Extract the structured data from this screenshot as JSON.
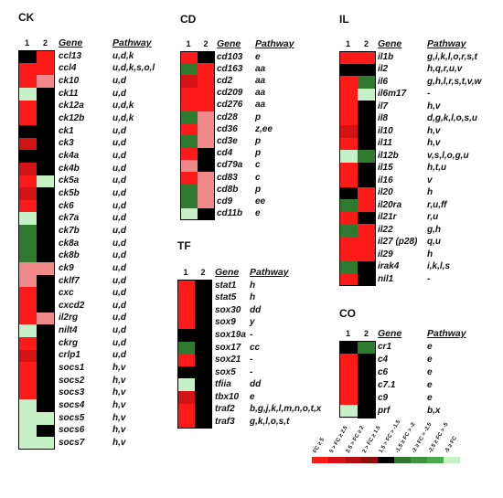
{
  "colors": {
    "up_strong": "#ff1a1a",
    "up_mid": "#d41414",
    "up_weak": "#8e0e0e",
    "neutral": "#000000",
    "down_weak": "#2f7a2f",
    "down_mid": "#4ea84e",
    "down_strong": "#c6f0c6",
    "pale_red": "#f08a8a"
  },
  "legend": {
    "labels": [
      "FC ≥ 5",
      "5 > FC ≥ 2.5",
      "2.5 > FC ≥ 2",
      "2 > FC ≥ 1.5",
      "1.5 > FC > -1.5",
      "-1.5 ≥ FC > -2",
      "-2 ≥ FC > -2.5",
      "-2.5 ≥ FC > -5",
      "-5 ≥ FC"
    ],
    "colors": [
      "#ff1a1a",
      "#d41414",
      "#b01010",
      "#8e0e0e",
      "#000000",
      "#2f7a2f",
      "#3e933e",
      "#4ea84e",
      "#c6f0c6"
    ]
  },
  "panels": [
    {
      "id": "ck",
      "title": "CK",
      "col1": "1",
      "col2": "2",
      "gene_header": "Gene",
      "pathway_header": "Pathway",
      "rows": [
        {
          "gene": "ccl13",
          "pathway": "u,d,k",
          "c1": "#000000",
          "c2": "#ff1a1a"
        },
        {
          "gene": "ccl4",
          "pathway": "u,d,k,s,o,l",
          "c1": "#ff1a1a",
          "c2": "#ff1a1a"
        },
        {
          "gene": "ck10",
          "pathway": "u,d",
          "c1": "#ff1a1a",
          "c2": "#f08a8a"
        },
        {
          "gene": "ck11",
          "pathway": "u,d",
          "c1": "#c6f0c6",
          "c2": "#000000"
        },
        {
          "gene": "ck12a",
          "pathway": "u,d,k",
          "c1": "#ff1a1a",
          "c2": "#000000"
        },
        {
          "gene": "ck12b",
          "pathway": "u,d,k",
          "c1": "#ff1a1a",
          "c2": "#000000"
        },
        {
          "gene": "ck1",
          "pathway": "u,d",
          "c1": "#000000",
          "c2": "#000000"
        },
        {
          "gene": "ck3",
          "pathway": "u,d",
          "c1": "#d41414",
          "c2": "#000000"
        },
        {
          "gene": "ck4a",
          "pathway": "u,d",
          "c1": "#000000",
          "c2": "#000000"
        },
        {
          "gene": "ck4b",
          "pathway": "u,d",
          "c1": "#d41414",
          "c2": "#000000"
        },
        {
          "gene": "ck5a",
          "pathway": "u,d",
          "c1": "#ff1a1a",
          "c2": "#c6f0c6"
        },
        {
          "gene": "ck5b",
          "pathway": "u,d",
          "c1": "#d41414",
          "c2": "#000000"
        },
        {
          "gene": "ck6",
          "pathway": "u,d",
          "c1": "#ff1a1a",
          "c2": "#000000"
        },
        {
          "gene": "ck7a",
          "pathway": "u,d",
          "c1": "#c6f0c6",
          "c2": "#000000"
        },
        {
          "gene": "ck7b",
          "pathway": "u,d",
          "c1": "#2f7a2f",
          "c2": "#000000"
        },
        {
          "gene": "ck8a",
          "pathway": "u,d",
          "c1": "#2f7a2f",
          "c2": "#000000"
        },
        {
          "gene": "ck8b",
          "pathway": "u,d",
          "c1": "#2f7a2f",
          "c2": "#000000"
        },
        {
          "gene": "ck9",
          "pathway": "u,d",
          "c1": "#f08a8a",
          "c2": "#f08a8a"
        },
        {
          "gene": "cklf7",
          "pathway": "u,d",
          "c1": "#f08a8a",
          "c2": "#000000"
        },
        {
          "gene": "cxc",
          "pathway": "u,d",
          "c1": "#ff1a1a",
          "c2": "#000000"
        },
        {
          "gene": "cxcd2",
          "pathway": "u,d",
          "c1": "#ff1a1a",
          "c2": "#000000"
        },
        {
          "gene": "il2rg",
          "pathway": "u,d",
          "c1": "#ff1a1a",
          "c2": "#f08a8a"
        },
        {
          "gene": "nilt4",
          "pathway": "u,d",
          "c1": "#c6f0c6",
          "c2": "#000000"
        },
        {
          "gene": "ckrg",
          "pathway": "u,d",
          "c1": "#ff1a1a",
          "c2": "#000000"
        },
        {
          "gene": "crlp1",
          "pathway": "u,d",
          "c1": "#d41414",
          "c2": "#000000"
        },
        {
          "gene": "socs1",
          "pathway": "h,v",
          "c1": "#ff1a1a",
          "c2": "#000000"
        },
        {
          "gene": "socs2",
          "pathway": "h,v",
          "c1": "#ff1a1a",
          "c2": "#000000"
        },
        {
          "gene": "socs3",
          "pathway": "h,v",
          "c1": "#ff1a1a",
          "c2": "#000000"
        },
        {
          "gene": "socs4",
          "pathway": "h,v",
          "c1": "#c6f0c6",
          "c2": "#000000"
        },
        {
          "gene": "socs5",
          "pathway": "h,v",
          "c1": "#c6f0c6",
          "c2": "#c6f0c6"
        },
        {
          "gene": "socs6",
          "pathway": "h,v",
          "c1": "#c6f0c6",
          "c2": "#000000"
        },
        {
          "gene": "socs7",
          "pathway": "h,v",
          "c1": "#c6f0c6",
          "c2": "#c6f0c6"
        }
      ]
    },
    {
      "id": "cd",
      "title": "CD",
      "col1": "1",
      "col2": "2",
      "gene_header": "Gene",
      "pathway_header": "Pathway",
      "rows": [
        {
          "gene": "cd103",
          "pathway": "e",
          "c1": "#ff1a1a",
          "c2": "#000000"
        },
        {
          "gene": "cd163",
          "pathway": "aa",
          "c1": "#2f7a2f",
          "c2": "#ff1a1a"
        },
        {
          "gene": "cd2",
          "pathway": "aa",
          "c1": "#d41414",
          "c2": "#ff1a1a"
        },
        {
          "gene": "cd209",
          "pathway": "aa",
          "c1": "#ff1a1a",
          "c2": "#ff1a1a"
        },
        {
          "gene": "cd276",
          "pathway": "aa",
          "c1": "#ff1a1a",
          "c2": "#ff1a1a"
        },
        {
          "gene": "cd28",
          "pathway": "p",
          "c1": "#2f7a2f",
          "c2": "#f08a8a"
        },
        {
          "gene": "cd36",
          "pathway": "z,ee",
          "c1": "#ff1a1a",
          "c2": "#f08a8a"
        },
        {
          "gene": "cd3e",
          "pathway": "p",
          "c1": "#2f7a2f",
          "c2": "#f08a8a"
        },
        {
          "gene": "cd4",
          "pathway": "p",
          "c1": "#ff1a1a",
          "c2": "#000000"
        },
        {
          "gene": "cd79a",
          "pathway": "c",
          "c1": "#f08a8a",
          "c2": "#000000"
        },
        {
          "gene": "cd83",
          "pathway": "c",
          "c1": "#ff1a1a",
          "c2": "#f08a8a"
        },
        {
          "gene": "cd8b",
          "pathway": "p",
          "c1": "#2f7a2f",
          "c2": "#f08a8a"
        },
        {
          "gene": "cd9",
          "pathway": "ee",
          "c1": "#2f7a2f",
          "c2": "#f08a8a"
        },
        {
          "gene": "cd11b",
          "pathway": "e",
          "c1": "#c6f0c6",
          "c2": "#000000"
        }
      ]
    },
    {
      "id": "il",
      "title": "IL",
      "col1": "1",
      "col2": "2",
      "gene_header": "Gene",
      "pathway_header": "Pathway",
      "rows": [
        {
          "gene": "il1b",
          "pathway": "g,i,k,l,o,r,s,t",
          "c1": "#ff1a1a",
          "c2": "#ff1a1a"
        },
        {
          "gene": "il2",
          "pathway": "h,q,r,u,v",
          "c1": "#000000",
          "c2": "#000000"
        },
        {
          "gene": "il6",
          "pathway": "g,h,l,r,s,t,v,w",
          "c1": "#ff1a1a",
          "c2": "#2f7a2f"
        },
        {
          "gene": "il6m17",
          "pathway": "-",
          "c1": "#ff1a1a",
          "c2": "#c6f0c6"
        },
        {
          "gene": "il7",
          "pathway": "h,v",
          "c1": "#ff1a1a",
          "c2": "#000000"
        },
        {
          "gene": "il8",
          "pathway": "d,g,k,l,o,s,u",
          "c1": "#ff1a1a",
          "c2": "#000000"
        },
        {
          "gene": "il10",
          "pathway": "h,v",
          "c1": "#d41414",
          "c2": "#000000"
        },
        {
          "gene": "il11",
          "pathway": "h,v",
          "c1": "#ff1a1a",
          "c2": "#000000"
        },
        {
          "gene": "il12b",
          "pathway": "v,s,l,o,g,u",
          "c1": "#c6f0c6",
          "c2": "#2f7a2f"
        },
        {
          "gene": "il15",
          "pathway": "h,t,u",
          "c1": "#ff1a1a",
          "c2": "#000000"
        },
        {
          "gene": "il16",
          "pathway": "v",
          "c1": "#ff1a1a",
          "c2": "#000000"
        },
        {
          "gene": "il20",
          "pathway": "h",
          "c1": "#000000",
          "c2": "#ff1a1a"
        },
        {
          "gene": "il20ra",
          "pathway": "r,u,ff",
          "c1": "#2f7a2f",
          "c2": "#ff1a1a"
        },
        {
          "gene": "il21r",
          "pathway": "r,u",
          "c1": "#ff1a1a",
          "c2": "#000000"
        },
        {
          "gene": "il22",
          "pathway": "g,h",
          "c1": "#2f7a2f",
          "c2": "#ff1a1a"
        },
        {
          "gene": "il27 (p28)",
          "pathway": "q,u",
          "c1": "#ff1a1a",
          "c2": "#ff1a1a"
        },
        {
          "gene": "il29",
          "pathway": "h",
          "c1": "#ff1a1a",
          "c2": "#ff1a1a"
        },
        {
          "gene": "irak4",
          "pathway": "i,k,l,s",
          "c1": "#2f7a2f",
          "c2": "#000000"
        },
        {
          "gene": "nil1",
          "pathway": "-",
          "c1": "#ff1a1a",
          "c2": "#000000"
        }
      ]
    },
    {
      "id": "tf",
      "title": "TF",
      "col1": "1",
      "col2": "2",
      "gene_header": "Gene",
      "pathway_header": "Pathway",
      "rows": [
        {
          "gene": "stat1",
          "pathway": "h",
          "c1": "#ff1a1a",
          "c2": "#000000"
        },
        {
          "gene": "stat5",
          "pathway": "h",
          "c1": "#ff1a1a",
          "c2": "#000000"
        },
        {
          "gene": "sox30",
          "pathway": "dd",
          "c1": "#ff1a1a",
          "c2": "#000000"
        },
        {
          "gene": "sox9",
          "pathway": "y",
          "c1": "#ff1a1a",
          "c2": "#000000"
        },
        {
          "gene": "sox19a",
          "pathway": "-",
          "c1": "#000000",
          "c2": "#000000"
        },
        {
          "gene": "sox17",
          "pathway": "cc",
          "c1": "#2f7a2f",
          "c2": "#000000"
        },
        {
          "gene": "sox21",
          "pathway": "-",
          "c1": "#ff1a1a",
          "c2": "#000000"
        },
        {
          "gene": "sox5",
          "pathway": "-",
          "c1": "#000000",
          "c2": "#000000"
        },
        {
          "gene": "tfiia",
          "pathway": "dd",
          "c1": "#c6f0c6",
          "c2": "#000000"
        },
        {
          "gene": "tbx10",
          "pathway": "e",
          "c1": "#d41414",
          "c2": "#000000"
        },
        {
          "gene": "traf2",
          "pathway": "b,g,j,k,l,m,n,o,t,x",
          "c1": "#ff1a1a",
          "c2": "#000000"
        },
        {
          "gene": "traf3",
          "pathway": "g,k,l,o,s,t",
          "c1": "#ff1a1a",
          "c2": "#000000"
        }
      ]
    },
    {
      "id": "co",
      "title": "CO",
      "col1": "1",
      "col2": "2",
      "gene_header": "Gene",
      "pathway_header": "Pathway",
      "rows": [
        {
          "gene": "cr1",
          "pathway": "e",
          "c1": "#000000",
          "c2": "#2f7a2f"
        },
        {
          "gene": "c4",
          "pathway": "e",
          "c1": "#ff1a1a",
          "c2": "#000000"
        },
        {
          "gene": "c6",
          "pathway": "e",
          "c1": "#ff1a1a",
          "c2": "#000000"
        },
        {
          "gene": "c7.1",
          "pathway": "e",
          "c1": "#ff1a1a",
          "c2": "#000000"
        },
        {
          "gene": "c9",
          "pathway": "e",
          "c1": "#ff1a1a",
          "c2": "#000000"
        },
        {
          "gene": "prf",
          "pathway": "b,x",
          "c1": "#c6f0c6",
          "c2": "#000000"
        }
      ]
    }
  ]
}
